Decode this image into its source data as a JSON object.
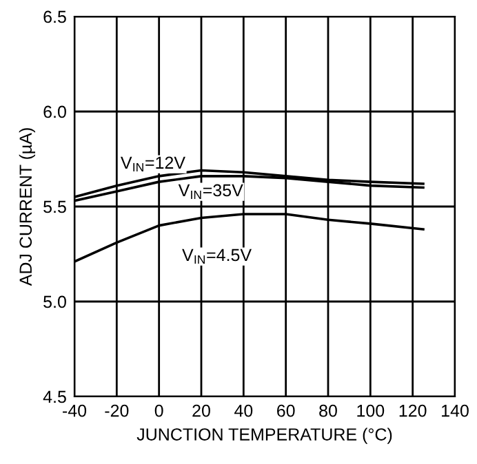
{
  "chart_data": {
    "type": "line",
    "xlabel": "JUNCTION TEMPERATURE (°C)",
    "ylabel": "ADJ CURRENT (µA)",
    "xlim": [
      -40,
      140
    ],
    "xticks": [
      -40,
      -20,
      0,
      20,
      40,
      60,
      80,
      100,
      120,
      140
    ],
    "ylim": [
      4.5,
      6.5
    ],
    "yticks": [
      {
        "value": 4.5,
        "label": "4.5"
      },
      {
        "value": 5.0,
        "label": "5.0"
      },
      {
        "value": 5.5,
        "label": "5.5"
      },
      {
        "value": 6.0,
        "label": "6.0"
      },
      {
        "value": 6.5,
        "label": "6.5"
      }
    ],
    "grid": true,
    "marker": "none",
    "line_style": "solid",
    "legend": false,
    "series": [
      {
        "name": "V$_{IN}$=12V",
        "color": "#000000",
        "x": [
          -40,
          -20,
          0,
          20,
          40,
          60,
          80,
          100,
          125
        ],
        "values": [
          5.55,
          5.61,
          5.66,
          5.69,
          5.68,
          5.66,
          5.64,
          5.63,
          5.62
        ]
      },
      {
        "name": "V$_{IN}$=35V",
        "color": "#000000",
        "x": [
          -40,
          -20,
          0,
          20,
          40,
          60,
          80,
          100,
          125
        ],
        "values": [
          5.53,
          5.58,
          5.63,
          5.66,
          5.66,
          5.65,
          5.63,
          5.61,
          5.6
        ]
      },
      {
        "name": "V$_{IN}$=4.5V",
        "color": "#000000",
        "x": [
          -40,
          -20,
          0,
          20,
          40,
          60,
          80,
          100,
          125
        ],
        "values": [
          5.21,
          5.31,
          5.4,
          5.44,
          5.46,
          5.46,
          5.43,
          5.41,
          5.38
        ]
      }
    ]
  }
}
